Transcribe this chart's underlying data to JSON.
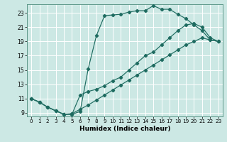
{
  "xlabel": "Humidex (Indice chaleur)",
  "bg_color": "#cce8e4",
  "line_color": "#1e6b60",
  "grid_color": "#ffffff",
  "xlim": [
    -0.5,
    23.5
  ],
  "ylim": [
    8.5,
    24.2
  ],
  "yticks": [
    9,
    11,
    13,
    15,
    17,
    19,
    21,
    23
  ],
  "xticks": [
    0,
    1,
    2,
    3,
    4,
    5,
    6,
    7,
    8,
    9,
    10,
    11,
    12,
    13,
    14,
    15,
    16,
    17,
    18,
    19,
    20,
    21,
    22,
    23
  ],
  "line_steep_x": [
    0,
    1,
    2,
    3,
    4,
    5,
    6,
    7,
    8,
    9,
    10,
    11,
    12,
    13,
    14,
    15,
    16,
    17,
    18,
    19,
    20,
    21,
    22,
    23
  ],
  "line_steep_y": [
    11,
    10.5,
    9.8,
    9.3,
    8.8,
    8.8,
    9.2,
    15.2,
    19.8,
    22.6,
    22.7,
    22.8,
    23.1,
    23.3,
    23.3,
    24.0,
    23.5,
    23.5,
    22.8,
    22.2,
    21.3,
    20.5,
    19.2,
    19.0
  ],
  "line_linear_x": [
    0,
    1,
    2,
    3,
    4,
    5,
    6,
    7,
    8,
    9,
    10,
    11,
    12,
    13,
    14,
    15,
    16,
    17,
    18,
    19,
    20,
    21,
    22,
    23
  ],
  "line_linear_y": [
    11,
    10.5,
    9.8,
    9.3,
    8.8,
    8.9,
    9.5,
    10.1,
    10.8,
    11.5,
    12.2,
    12.9,
    13.6,
    14.3,
    15.0,
    15.7,
    16.4,
    17.1,
    17.8,
    18.5,
    19.0,
    19.5,
    19.2,
    19.0
  ],
  "line_mid_x": [
    0,
    1,
    2,
    3,
    4,
    5,
    6,
    7,
    8,
    9,
    10,
    11,
    12,
    13,
    14,
    15,
    16,
    17,
    18,
    19,
    20,
    21,
    22,
    23
  ],
  "line_mid_y": [
    11,
    10.5,
    9.8,
    9.3,
    8.8,
    8.8,
    11.5,
    12.0,
    12.3,
    12.8,
    13.5,
    14.0,
    15.0,
    16.0,
    17.0,
    17.5,
    18.5,
    19.5,
    20.5,
    21.3,
    21.5,
    21.0,
    19.5,
    19.0
  ]
}
